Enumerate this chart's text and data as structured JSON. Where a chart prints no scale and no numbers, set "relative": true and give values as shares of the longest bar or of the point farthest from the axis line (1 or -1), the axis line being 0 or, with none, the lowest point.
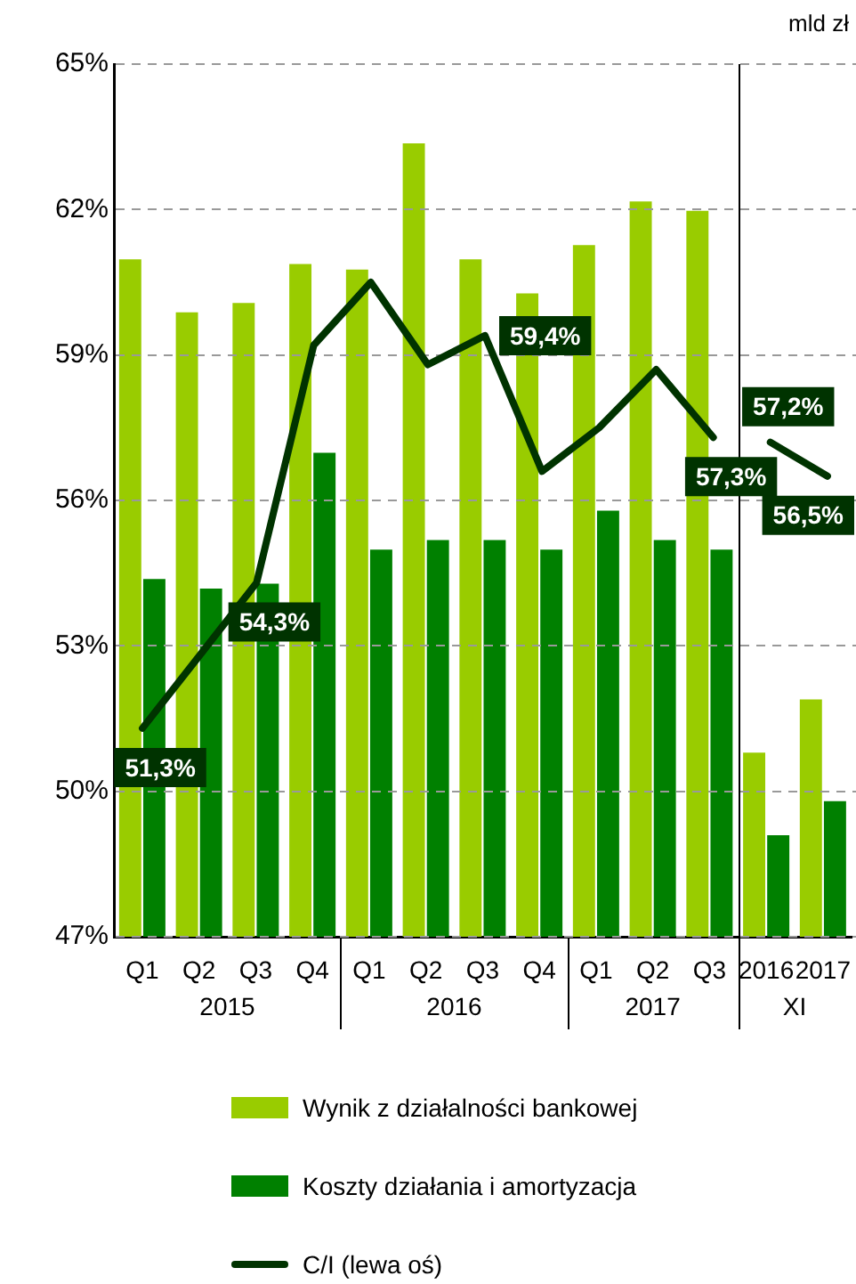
{
  "chart_data": [
    {
      "type": "bar",
      "relative": true,
      "ylabel": "mld zł",
      "legend": "bottom",
      "categories": [
        "Q1",
        "Q2",
        "Q3",
        "Q4",
        "Q1",
        "Q2",
        "Q3",
        "Q4",
        "Q1",
        "Q2",
        "Q3",
        "2016",
        "2017"
      ],
      "series": [
        {
          "name": "Wynik z działalności bankowej",
          "color": "#99cc00",
          "values": [
            0.854,
            0.787,
            0.799,
            0.848,
            0.841,
            1,
            0.854,
            0.811,
            0.872,
            0.927,
            0.915,
            0.232,
            0.299
          ]
        },
        {
          "name": "Koszty działania i amortyzacja",
          "color": "#008000",
          "values": [
            0.451,
            0.439,
            0.445,
            0.61,
            0.488,
            0.5,
            0.5,
            0.488,
            0.537,
            0.5,
            0.488,
            0.128,
            0.171
          ]
        }
      ],
      "annotations": [
        "2015",
        "2016",
        "2017",
        "XI"
      ]
    },
    {
      "type": "line",
      "legend": "bottom",
      "tick_labels": "y",
      "grid": "y",
      "marker": "none",
      "line_style": "solid",
      "categories": [
        "Q1",
        "Q2",
        "Q3",
        "Q4",
        "Q1",
        "Q2",
        "Q3",
        "Q4",
        "Q1",
        "Q2",
        "Q3",
        "2016",
        "2017"
      ],
      "series": [
        {
          "name": "C/I (lewa oś)",
          "color": "#003300",
          "values": [
            51.3,
            52.8,
            54.3,
            59.2,
            60.5,
            58.8,
            59.4,
            56.6,
            57.5,
            58.7,
            57.3,
            null,
            null
          ],
          "value_labels": [
            "51,3%",
            null,
            "54,3%",
            null,
            null,
            null,
            "59,4%",
            null,
            null,
            null,
            "57,3%",
            null,
            null
          ]
        },
        {
          "color": "#003300",
          "values": [
            null,
            null,
            null,
            null,
            null,
            null,
            null,
            null,
            null,
            null,
            null,
            57.2,
            56.5
          ],
          "value_labels": [
            null,
            null,
            null,
            null,
            null,
            null,
            null,
            null,
            null,
            null,
            null,
            "57,2%",
            "56,5%"
          ]
        }
      ],
      "ylim": [
        47,
        65
      ],
      "yticks": [
        {
          "value": 47,
          "label": "47%"
        },
        {
          "value": 50,
          "label": "50%"
        },
        {
          "value": 53,
          "label": "53%"
        },
        {
          "value": 56,
          "label": "56%"
        },
        {
          "value": 59,
          "label": "59%"
        },
        {
          "value": 62,
          "label": "62%"
        },
        {
          "value": 65,
          "label": "65%"
        }
      ]
    }
  ]
}
